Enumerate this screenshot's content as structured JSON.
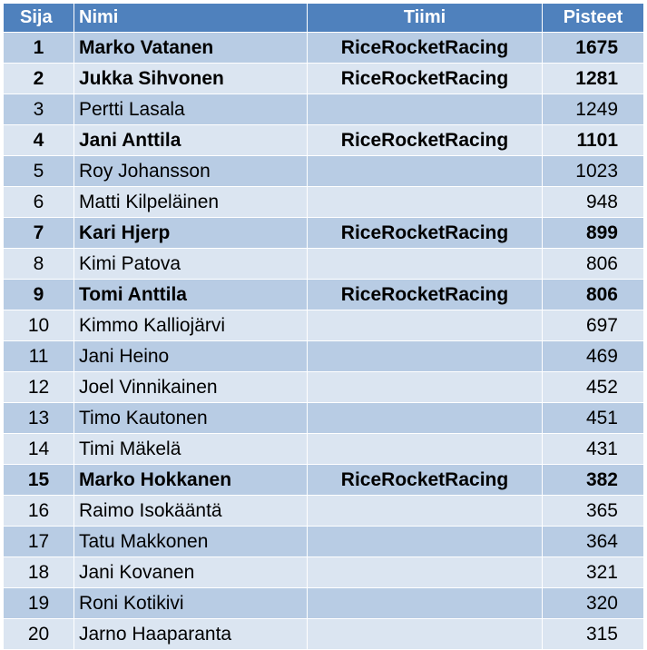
{
  "headers": {
    "rank": "Sija",
    "name": "Nimi",
    "team": "Tiimi",
    "points": "Pisteet"
  },
  "rows": [
    {
      "rank": "1",
      "name": "Marko Vatanen",
      "team": "RiceRocketRacing",
      "points": "1675",
      "bold": true
    },
    {
      "rank": "2",
      "name": "Jukka Sihvonen",
      "team": "RiceRocketRacing",
      "points": "1281",
      "bold": true
    },
    {
      "rank": "3",
      "name": "Pertti Lasala",
      "team": "",
      "points": "1249",
      "bold": false
    },
    {
      "rank": "4",
      "name": "Jani Anttila",
      "team": "RiceRocketRacing",
      "points": "1101",
      "bold": true
    },
    {
      "rank": "5",
      "name": "Roy Johansson",
      "team": "",
      "points": "1023",
      "bold": false
    },
    {
      "rank": "6",
      "name": "Matti Kilpeläinen",
      "team": "",
      "points": "948",
      "bold": false
    },
    {
      "rank": "7",
      "name": "Kari Hjerp",
      "team": "RiceRocketRacing",
      "points": "899",
      "bold": true
    },
    {
      "rank": "8",
      "name": "Kimi Patova",
      "team": "",
      "points": "806",
      "bold": false
    },
    {
      "rank": "9",
      "name": "Tomi Anttila",
      "team": "RiceRocketRacing",
      "points": "806",
      "bold": true
    },
    {
      "rank": "10",
      "name": "Kimmo Kalliojärvi",
      "team": "",
      "points": "697",
      "bold": false
    },
    {
      "rank": "11",
      "name": "Jani Heino",
      "team": "",
      "points": "469",
      "bold": false
    },
    {
      "rank": "12",
      "name": "Joel Vinnikainen",
      "team": "",
      "points": "452",
      "bold": false
    },
    {
      "rank": "13",
      "name": "Timo Kautonen",
      "team": "",
      "points": "451",
      "bold": false
    },
    {
      "rank": "14",
      "name": "Timi Mäkelä",
      "team": "",
      "points": "431",
      "bold": false
    },
    {
      "rank": "15",
      "name": "Marko Hokkanen",
      "team": "RiceRocketRacing",
      "points": "382",
      "bold": true
    },
    {
      "rank": "16",
      "name": "Raimo Isokääntä",
      "team": "",
      "points": "365",
      "bold": false
    },
    {
      "rank": "17",
      "name": "Tatu Makkonen",
      "team": "",
      "points": "364",
      "bold": false
    },
    {
      "rank": "18",
      "name": "Jani Kovanen",
      "team": "",
      "points": "321",
      "bold": false
    },
    {
      "rank": "19",
      "name": "Roni Kotikivi",
      "team": "",
      "points": "320",
      "bold": false
    },
    {
      "rank": "20",
      "name": "Jarno Haaparanta",
      "team": "",
      "points": "315",
      "bold": false
    }
  ],
  "colors": {
    "header_bg": "#4f81bd",
    "header_text": "#ffffff",
    "row_dark": "#b8cce4",
    "row_light": "#dbe5f1"
  }
}
